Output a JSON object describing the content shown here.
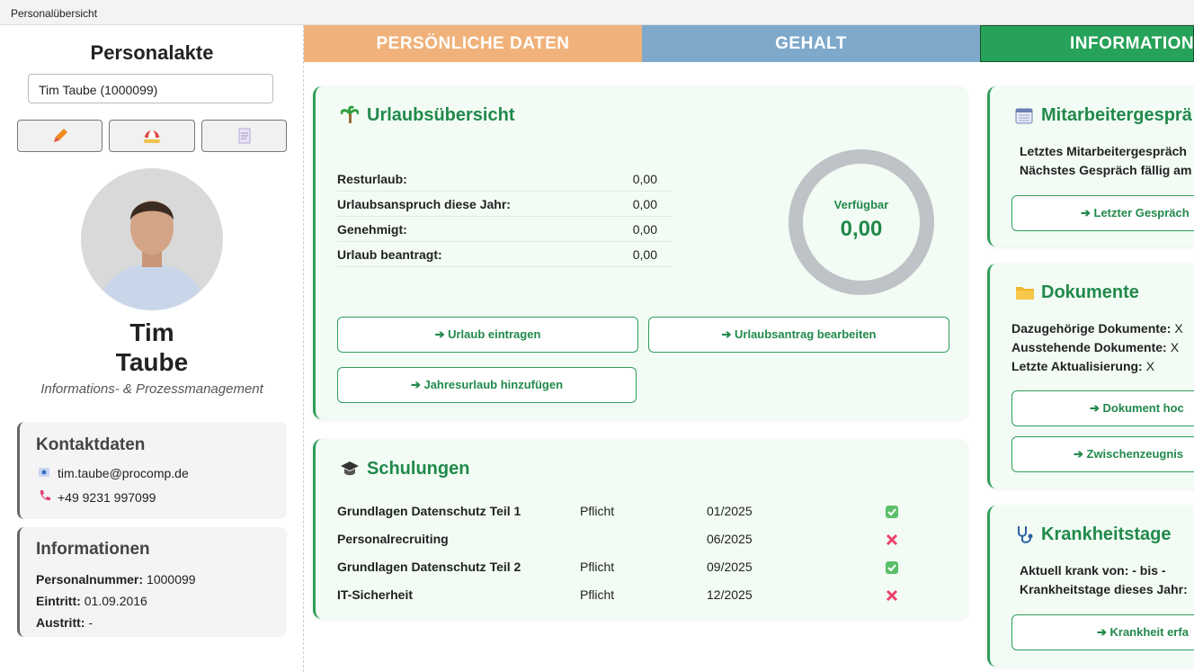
{
  "window": {
    "title": "Personalübersicht"
  },
  "sidebar": {
    "title": "Personalakte",
    "selection": "Tim Taube (1000099)",
    "first_name": "Tim",
    "last_name": "Taube",
    "role": "Informations- & Prozessmanagement",
    "contact": {
      "title": "Kontaktdaten",
      "email": "tim.taube@procomp.de",
      "phone": "+49 9231 997099"
    },
    "info": {
      "title": "Informationen",
      "rows": [
        [
          "Personalnummer:",
          "1000099"
        ],
        [
          "Eintritt:",
          "01.09.2016"
        ],
        [
          "Austritt:",
          "-"
        ]
      ]
    }
  },
  "tabs": [
    "PERSÖNLICHE DATEN",
    "GEHALT",
    "INFORMATION"
  ],
  "vacation": {
    "title": "Urlaubsübersicht",
    "rows": [
      [
        "Resturlaub:",
        "0,00"
      ],
      [
        "Urlaubsanspruch diese Jahr:",
        "0,00"
      ],
      [
        "Genehmigt:",
        "0,00"
      ],
      [
        "Urlaub beantragt:",
        "0,00"
      ]
    ],
    "ring_label": "Verfügbar",
    "ring_value": "0,00",
    "buttons": [
      "➔ Urlaub eintragen",
      "➔ Urlaubsantrag bearbeiten",
      "➔ Jahresurlaub hinzufügen"
    ]
  },
  "trainings": {
    "title": "Schulungen",
    "rows": [
      {
        "name": "Grundlagen Datenschutz Teil 1",
        "type": "Pflicht",
        "date": "01/2025",
        "done": true
      },
      {
        "name": "Personalrecruiting",
        "type": null,
        "date": "06/2025",
        "done": false
      },
      {
        "name": "Grundlagen Datenschutz Teil 2",
        "type": "Pflicht",
        "date": "09/2025",
        "done": true
      },
      {
        "name": "IT-Sicherheit",
        "type": "Pflicht",
        "date": "12/2025",
        "done": false
      }
    ]
  },
  "review": {
    "title": "Mitarbeitergesprä",
    "lines": [
      "Letztes Mitarbeitergespräch",
      "Nächstes Gespräch fällig am"
    ],
    "button": "➔ Letzter Gespräch"
  },
  "documents": {
    "title": "Dokumente",
    "rows": [
      [
        "Dazugehörige Dokumente:",
        "X"
      ],
      [
        "Ausstehende Dokumente:",
        "X"
      ],
      [
        "Letzte Aktualisierung:",
        "X"
      ]
    ],
    "buttons": [
      "➔ Dokument hoc",
      "➔ Zwischenzeugnis"
    ]
  },
  "sick": {
    "title": "Krankheitstage",
    "lines": [
      "Aktuell krank von: - bis -",
      "Krankheitstage dieses Jahr:"
    ],
    "button": "➔ Krankheit erfa"
  }
}
